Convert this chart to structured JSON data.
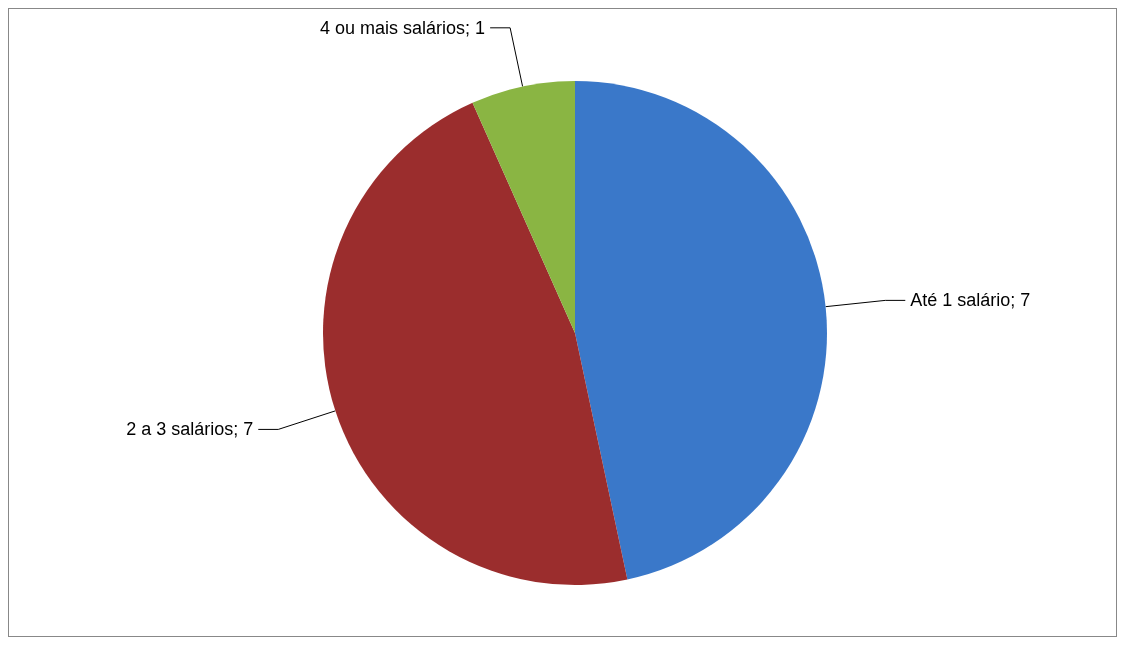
{
  "chart_data": {
    "type": "pie",
    "categories": [
      "Até 1 salário",
      "2 a 3 salários",
      "4 ou mais salários"
    ],
    "values": [
      7,
      7,
      1
    ],
    "colors": [
      "#3a78c9",
      "#9b2d2d",
      "#8ab543"
    ],
    "value_labels": [
      "; 7",
      "; 7",
      "; 1"
    ],
    "legend": false
  }
}
